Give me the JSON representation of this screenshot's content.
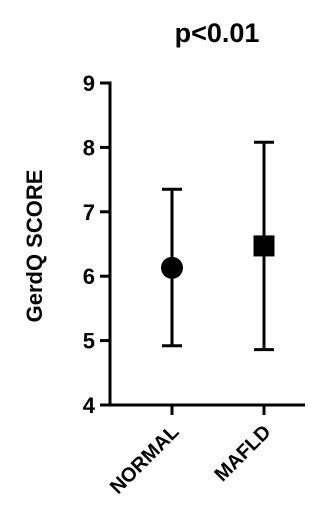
{
  "chart_data": {
    "type": "scatter",
    "title": "p<0.01",
    "xlabel": "",
    "ylabel": "GerdQ SCORE",
    "ylim": [
      4,
      9
    ],
    "yticks": [
      4,
      5,
      6,
      7,
      8,
      9
    ],
    "grid": false,
    "legend": "none",
    "categories": [
      "NORMAL",
      "MAFLD"
    ],
    "series": [
      {
        "points": [
          {
            "category": "NORMAL",
            "mean": 6.13,
            "error_low": 4.92,
            "error_high": 7.35,
            "marker": "circle"
          },
          {
            "category": "MAFLD",
            "mean": 6.47,
            "error_low": 4.86,
            "error_high": 8.08,
            "marker": "square"
          }
        ]
      }
    ],
    "colors": {
      "marker": "#000000",
      "axis": "#000000"
    }
  }
}
